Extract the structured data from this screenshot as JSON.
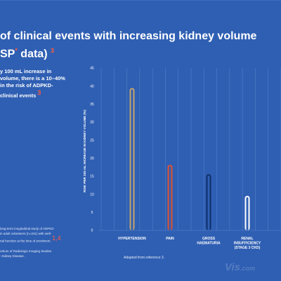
{
  "title": {
    "line1": "of clinical events with increasing kidney volume",
    "line2": "SP",
    "line2_sup": "*",
    "line2_end": " data)",
    "ref": "3"
  },
  "intro": {
    "lines": [
      "y 100 mL increase in",
      "volume, there is a 10–40%",
      "in the risk of ADPKD-",
      "clinical events"
    ],
    "ref": "3"
  },
  "notes": {
    "lines": [
      "long-term longitudinal study of ADPKD",
      "in adult volunteers (n=241) with well-",
      "nal function at the time of enrolment.",
      "ortium of Radiologic Imaging Studies",
      ": Kidney Disease."
    ],
    "refs": "1,4"
  },
  "source": "Adapted from reference 3.",
  "watermark": "Vis",
  "watermark_small": ".com",
  "colors": {
    "background": "#2f5fb3",
    "grid": "#5b86cc",
    "hypertension": "#c4a46a",
    "pain": "#e0522e",
    "gross_haematuria": "#0e2f6b",
    "renal_insufficiency": "#ffffff"
  },
  "chart_data": {
    "type": "bar",
    "title": "",
    "xlabel": "",
    "ylabel": "RISK PER 100 mL INCREASE IN KIDNEY VOLUME (%)",
    "ylim": [
      0,
      45
    ],
    "yticks": [
      0,
      5,
      10,
      15,
      20,
      25,
      30,
      35,
      40,
      45
    ],
    "grid": true,
    "categories": [
      [
        "HYPERTENSION"
      ],
      [
        "PAIN"
      ],
      [
        "GROSS",
        "HAEMATURIA"
      ],
      [
        "RENAL",
        "INSUFFICIENCY",
        "(STAGE 3 CKD)"
      ]
    ],
    "values": [
      39.5,
      18.2,
      15.6,
      9.6
    ],
    "bar_colors": [
      "#c4a46a",
      "#e0522e",
      "#0e2f6b",
      "#ffffff"
    ]
  }
}
